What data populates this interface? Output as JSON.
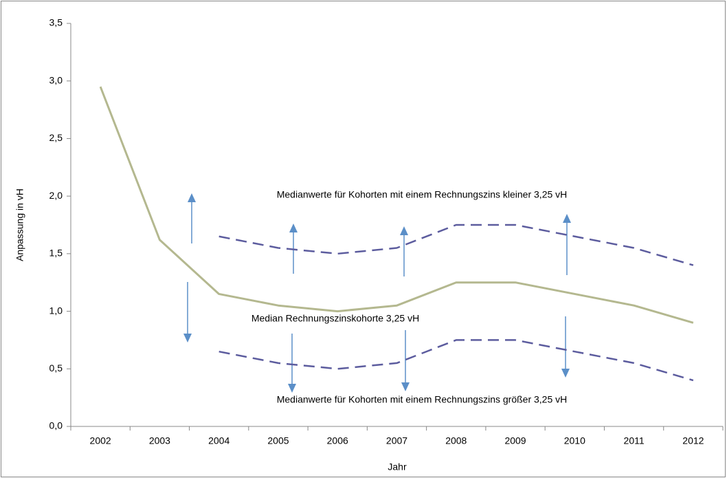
{
  "chart_data": {
    "type": "line",
    "y_label": "Anpassung in vH",
    "x_label": "Jahr",
    "categories": [
      "2002",
      "2003",
      "2004",
      "2005",
      "2006",
      "2007",
      "2008",
      "2009",
      "2010",
      "2011",
      "2012"
    ],
    "series": [
      {
        "color": "#b4b88f",
        "line_style": "solid",
        "values": [
          2.95,
          1.62,
          1.15,
          1.05,
          1.0,
          1.05,
          1.25,
          1.25,
          1.15,
          1.05,
          0.9
        ]
      },
      {
        "color": "#5c5c9e",
        "line_style": "dashed",
        "values": [
          null,
          null,
          1.65,
          1.55,
          1.5,
          1.55,
          1.75,
          1.75,
          1.65,
          1.55,
          1.4
        ]
      },
      {
        "color": "#5c5c9e",
        "line_style": "dashed",
        "values": [
          null,
          null,
          0.65,
          0.55,
          0.5,
          0.55,
          0.75,
          0.75,
          0.65,
          0.55,
          0.4
        ]
      }
    ],
    "ylim": [
      0,
      3.5
    ],
    "yticks": [
      {
        "value": 0,
        "label": "0,0"
      },
      {
        "value": 0.5,
        "label": "0,5"
      },
      {
        "value": 1,
        "label": "1,0"
      },
      {
        "value": 1.5,
        "label": "1,5"
      },
      {
        "value": 2,
        "label": "2,0"
      },
      {
        "value": 2.5,
        "label": "2,5"
      },
      {
        "value": 3,
        "label": "3,0"
      },
      {
        "value": 3.5,
        "label": "3,5"
      }
    ],
    "annotations": [
      "Medianwerte für Kohorten mit einem Rechnungszins kleiner 3,25 vH",
      "Median Rechnungszinskohorte 3,25 vH",
      "Medianwerte für Kohorten mit einem Rechnungszins größer 3,25 vH"
    ]
  }
}
